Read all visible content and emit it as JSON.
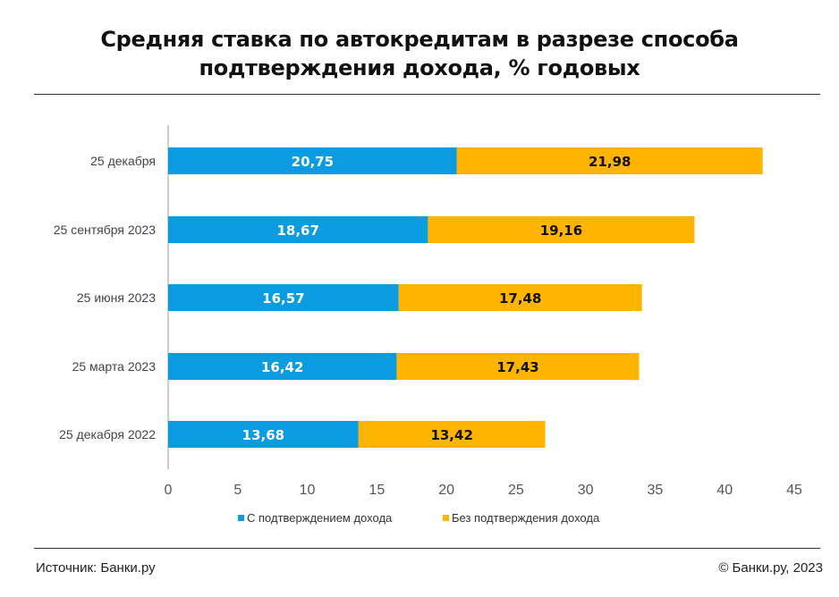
{
  "title_lines": [
    "Средняя ставка по автокредитам в разрезе способа",
    "подтверждения дохода, % годовых"
  ],
  "footer": {
    "source": "Источник: Банки.ру",
    "copyright": "© Банки.ру, 2023"
  },
  "chart_data": {
    "type": "bar",
    "orientation": "horizontal",
    "stacked": true,
    "title": "Средняя ставка по автокредитам в разрезе способа подтверждения дохода, % годовых",
    "categories": [
      "25 декабря",
      "25 сентября 2023",
      "25 июня 2023",
      "25 марта 2023",
      "25 декабря 2022"
    ],
    "series": [
      {
        "name": "С подтверждением дохода",
        "color": "#0a9be0",
        "label_color": "#ffffff",
        "values": [
          20.75,
          18.67,
          16.57,
          16.42,
          13.68
        ],
        "labels": [
          "20,75",
          "18,67",
          "16,57",
          "16,42",
          "13,68"
        ]
      },
      {
        "name": "Без подтверждения дохода",
        "color": "#ffb400",
        "label_color": "#111111",
        "values": [
          21.98,
          19.16,
          17.48,
          17.43,
          13.42
        ],
        "labels": [
          "21,98",
          "19,16",
          "17,48",
          "17,43",
          "13,42"
        ]
      }
    ],
    "xlim": [
      0,
      45
    ],
    "xticks": [
      0,
      5,
      10,
      15,
      20,
      25,
      30,
      35,
      40,
      45
    ],
    "grid": false,
    "legend": "bottom"
  }
}
